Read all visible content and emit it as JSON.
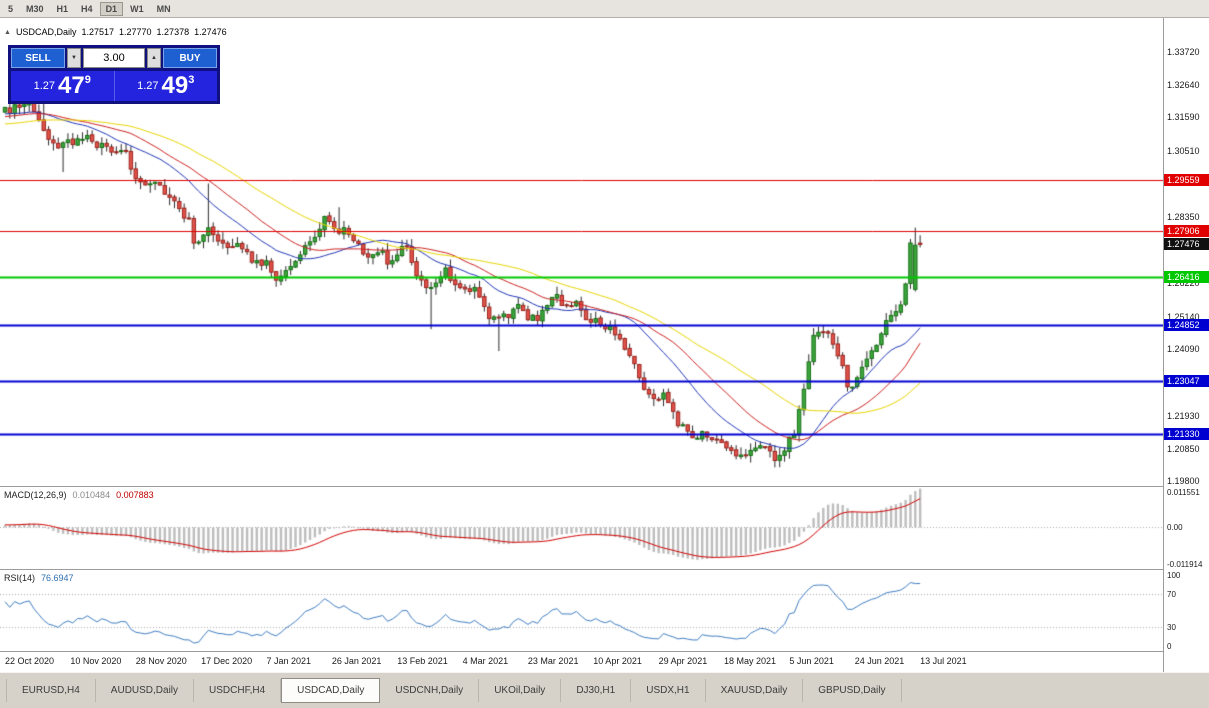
{
  "icons": {
    "one_click_toggle": "▲",
    "volume_down": "▼",
    "volume_up": "▲"
  },
  "toolbar": {
    "timeframes": [
      "5",
      "M30",
      "H1",
      "H4",
      "D1",
      "W1",
      "MN"
    ],
    "active": "D1"
  },
  "chart_header": {
    "symbol": "USDCAD,Daily",
    "open": "1.27517",
    "high": "1.27770",
    "low": "1.27378",
    "close": "1.27476"
  },
  "trade_panel": {
    "sell_label": "SELL",
    "buy_label": "BUY",
    "volume": "3.00",
    "sell_price": {
      "prefix": "1.27",
      "big": "47",
      "sup": "9"
    },
    "buy_price": {
      "prefix": "1.27",
      "big": "49",
      "sup": "3"
    }
  },
  "panes": {
    "macd": {
      "title": "MACD(12,26,9)",
      "value1": "0.010484",
      "value2": "0.007883"
    },
    "rsi": {
      "title": "RSI(14)",
      "value": "76.6947"
    }
  },
  "tabs": {
    "items": [
      "EURUSD,H4",
      "AUDUSD,Daily",
      "USDCHF,H4",
      "USDCAD,Daily",
      "USDCNH,Daily",
      "UKOil,Daily",
      "DJ30,H1",
      "USDX,H1",
      "XAUUSD,Daily",
      "GBPUSD,Daily"
    ],
    "active": "USDCAD,Daily"
  },
  "chart_data": {
    "type": "candlestick",
    "symbol": "USDCAD",
    "period": "Daily",
    "seed": 20210716,
    "pre_roll": 80,
    "num_candles": 190,
    "x0": 5,
    "step": 4.842,
    "label_every": 13.5,
    "noise": 0.0028,
    "y_range": [
      1.1965,
      1.3481
    ],
    "y_ticks": [
      [
        1.3372,
        "1.33720"
      ],
      [
        1.3264,
        "1.32640"
      ],
      [
        1.3159,
        "1.31590"
      ],
      [
        1.3051,
        "1.30510"
      ],
      [
        1.2835,
        "1.28350"
      ],
      [
        1.2622,
        "1.26220"
      ],
      [
        1.2514,
        "1.25140"
      ],
      [
        1.2409,
        "1.24090"
      ],
      [
        1.2193,
        "1.21930"
      ],
      [
        1.2085,
        "1.20850"
      ],
      [
        1.198,
        "1.19800"
      ]
    ],
    "x_labels": [
      "22 Oct 2020",
      "10 Nov 2020",
      "28 Nov 2020",
      "17 Dec 2020",
      "7 Jan 2021",
      "26 Jan 2021",
      "13 Feb 2021",
      "4 Mar 2021",
      "23 Mar 2021",
      "10 Apr 2021",
      "29 Apr 2021",
      "18 May 2021",
      "5 Jun 2021",
      "24 Jun 2021",
      "13 Jul 2021"
    ],
    "hlines": [
      {
        "price": 1.29559,
        "label": "1.29559",
        "color": "#e00000",
        "width": 1
      },
      {
        "price": 1.27906,
        "label": "1.27906",
        "color": "#e00000",
        "width": 1
      },
      {
        "price": 1.26416,
        "label": "1.26416",
        "color": "#00c800",
        "width": 2
      },
      {
        "price": 1.24852,
        "label": "1.24852",
        "color": "#0000d0",
        "width": 2
      },
      {
        "price": 1.23047,
        "label": "1.23047",
        "color": "#0000d0",
        "width": 2
      },
      {
        "price": 1.2133,
        "label": "1.21330",
        "color": "#0000d0",
        "width": 2
      }
    ],
    "current_price": {
      "value": 1.27476,
      "label": "1.27476",
      "bg": "#101010"
    },
    "anchors": [
      [
        -80,
        1.323
      ],
      [
        -60,
        1.3165
      ],
      [
        -45,
        1.315
      ],
      [
        -30,
        1.309
      ],
      [
        -15,
        1.3195
      ],
      [
        0,
        1.3155
      ],
      [
        5,
        1.319
      ],
      [
        9,
        1.3125
      ],
      [
        13,
        1.306
      ],
      [
        18,
        1.3105
      ],
      [
        23,
        1.3048
      ],
      [
        27,
        1.2995
      ],
      [
        31,
        1.2942
      ],
      [
        36,
        1.289
      ],
      [
        40,
        1.2772
      ],
      [
        44,
        1.2788
      ],
      [
        48,
        1.2728
      ],
      [
        53,
        1.269
      ],
      [
        57,
        1.2652
      ],
      [
        61,
        1.27
      ],
      [
        67,
        1.2838
      ],
      [
        71,
        1.2792
      ],
      [
        75,
        1.2732
      ],
      [
        80,
        1.2705
      ],
      [
        84,
        1.2748
      ],
      [
        88,
        1.2612
      ],
      [
        93,
        1.2655
      ],
      [
        98,
        1.2602
      ],
      [
        102,
        1.2502
      ],
      [
        107,
        1.2556
      ],
      [
        112,
        1.2512
      ],
      [
        116,
        1.2562
      ],
      [
        120,
        1.2536
      ],
      [
        124,
        1.2496
      ],
      [
        128,
        1.2432
      ],
      [
        133,
        1.2296
      ],
      [
        137,
        1.2262
      ],
      [
        141,
        1.2158
      ],
      [
        147,
        1.2106
      ],
      [
        153,
        1.2072
      ],
      [
        158,
        1.2092
      ],
      [
        161,
        1.2062
      ],
      [
        164,
        1.2128
      ],
      [
        168,
        1.2462
      ],
      [
        171,
        1.2468
      ],
      [
        175,
        1.2296
      ],
      [
        178,
        1.2332
      ],
      [
        182,
        1.2456
      ],
      [
        186,
        1.2546
      ],
      [
        187,
        1.262
      ],
      [
        188,
        1.2745
      ],
      [
        189,
        1.27476
      ]
    ],
    "spikes": [
      {
        "i": 8,
        "high": 1.3258
      },
      {
        "i": 12,
        "low": 1.2982
      },
      {
        "i": 42,
        "high": 1.2945
      },
      {
        "i": 57,
        "low": 1.2628
      },
      {
        "i": 69,
        "high": 1.2868
      },
      {
        "i": 88,
        "low": 1.2473
      },
      {
        "i": 102,
        "low": 1.2402
      },
      {
        "i": 168,
        "high": 1.2481
      }
    ],
    "overrides": [
      {
        "i": 188,
        "o": 1.2602,
        "h": 1.2802,
        "l": 1.2595,
        "c": 1.2745
      },
      {
        "i": 189,
        "o": 1.27517,
        "h": 1.2777,
        "l": 1.27378,
        "c": 1.27476
      }
    ],
    "candle_colors": {
      "up_fill": "#3da63d",
      "up_stroke": "#167016",
      "down_fill": "#e0524a",
      "down_stroke": "#9c241e",
      "wick": "#2a2a2a"
    },
    "ma": [
      {
        "period": 18,
        "color": "#1f35b5"
      },
      {
        "period": 28,
        "color": "#cc2020"
      },
      {
        "period": 45,
        "color": "#e6d400"
      }
    ],
    "macd": {
      "fast": 12,
      "slow": 26,
      "signal": 9,
      "range": [
        -0.01252,
        0.01215
      ],
      "hist_color": "#bdbdbd",
      "signal_color": "#d00000",
      "scale": [
        {
          "v": 0.011551,
          "label": "0.011551"
        },
        {
          "v": 0,
          "label": "0.00"
        },
        {
          "v": -0.011914,
          "label": "-0.011914"
        }
      ]
    },
    "rsi": {
      "period": 14,
      "color": "#3f7cc0",
      "levels": [
        {
          "v": 100,
          "label": "100"
        },
        {
          "v": 70,
          "label": "70"
        },
        {
          "v": 30,
          "label": "30"
        },
        {
          "v": 0,
          "label": "0"
        }
      ],
      "dotted": [
        70,
        30
      ]
    }
  }
}
